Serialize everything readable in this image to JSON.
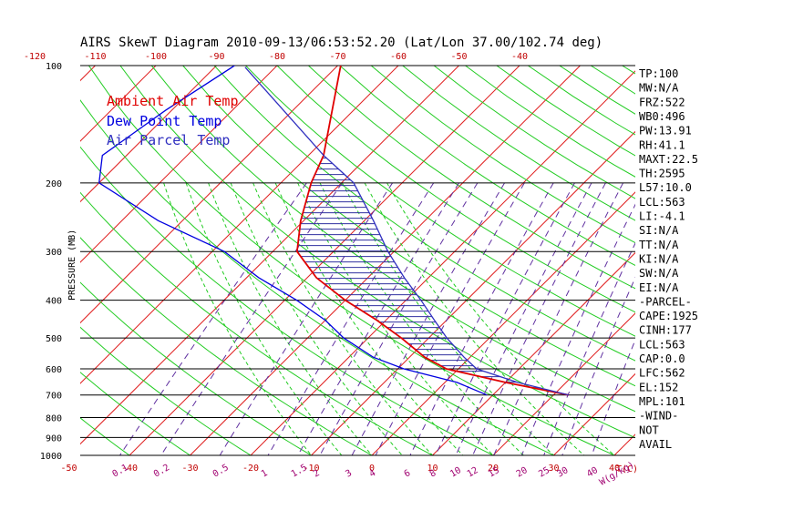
{
  "title": "AIRS SkewT Diagram 2010-09-13/06:53:52.20 (Lat/Lon 37.00/102.74 deg)",
  "legend": [
    {
      "label": "Ambient Air Temp",
      "color": "#e00000"
    },
    {
      "label": "Dew Point Temp",
      "color": "#0000e0"
    },
    {
      "label": "Air Parcel Temp",
      "color": "#3030c0"
    }
  ],
  "chart_data": {
    "type": "line",
    "title": "AIRS SkewT Diagram 2010-09-13/06:53:52.20 (Lat/Lon 37.00/102.74 deg)",
    "ylabel": "PRESSURE (MB)",
    "xlabel": "T(C)",
    "mixing_ratio_unit": "W(g/kg)",
    "y_ticks": [
      "100",
      "200",
      "300",
      "400",
      "500",
      "600",
      "700",
      "800",
      "900",
      "1000"
    ],
    "y_tick_values": [
      100,
      200,
      300,
      400,
      500,
      600,
      700,
      800,
      900,
      1000
    ],
    "x_ticks_bottom": [
      "-50",
      "-40",
      "-30",
      "-20",
      "-10",
      "0",
      "10",
      "20",
      "30",
      "40"
    ],
    "x_ticks_bottom_values": [
      -50,
      -40,
      -30,
      -20,
      -10,
      0,
      10,
      20,
      30,
      40
    ],
    "x_ticks_top": [
      "-120",
      "-110",
      "-100",
      "-90",
      "-80",
      "-70",
      "-60",
      "-50",
      "-40"
    ],
    "x_ticks_top_values": [
      -120,
      -110,
      -100,
      -90,
      -80,
      -70,
      -60,
      -50,
      -40
    ],
    "mixing_ratio_labels": [
      "0.1",
      "0.2",
      "0.5",
      "1",
      "1.5",
      "2",
      "3",
      "4",
      "6",
      "8",
      "10",
      "12",
      "15",
      "20",
      "25",
      "30",
      "40"
    ],
    "mixing_ratio_values": [
      0.1,
      0.2,
      0.5,
      1,
      1.5,
      2,
      3,
      4,
      6,
      8,
      10,
      12,
      15,
      20,
      25,
      30,
      40
    ],
    "series": [
      {
        "name": "Ambient Air Temp",
        "color": "#e00000",
        "points": [
          [
            100,
            -69.5
          ],
          [
            170,
            -57.5
          ],
          [
            200,
            -55
          ],
          [
            250,
            -50.5
          ],
          [
            300,
            -46
          ],
          [
            350,
            -38.5
          ],
          [
            400,
            -30
          ],
          [
            450,
            -21.5
          ],
          [
            500,
            -14.5
          ],
          [
            560,
            -7.5
          ],
          [
            600,
            -2
          ],
          [
            650,
            10
          ],
          [
            700,
            22.5
          ]
        ]
      },
      {
        "name": "Dew Point Temp",
        "color": "#0000e0",
        "points": [
          [
            100,
            -87
          ],
          [
            130,
            -91
          ],
          [
            170,
            -94
          ],
          [
            200,
            -90
          ],
          [
            250,
            -74
          ],
          [
            300,
            -58
          ],
          [
            350,
            -48
          ],
          [
            400,
            -38
          ],
          [
            450,
            -30
          ],
          [
            500,
            -24
          ],
          [
            560,
            -16
          ],
          [
            600,
            -9
          ],
          [
            650,
            2
          ],
          [
            700,
            9
          ]
        ]
      },
      {
        "name": "Air Parcel Temp",
        "color": "#3030c0",
        "points": [
          [
            101,
            -85
          ],
          [
            170,
            -57.5
          ],
          [
            200,
            -48
          ],
          [
            250,
            -38.5
          ],
          [
            300,
            -31
          ],
          [
            350,
            -24
          ],
          [
            400,
            -17.5
          ],
          [
            450,
            -12
          ],
          [
            500,
            -7
          ],
          [
            560,
            -1
          ],
          [
            600,
            3
          ],
          [
            650,
            12
          ],
          [
            700,
            22.5
          ]
        ]
      }
    ],
    "sounding_indices": [
      "TP:100",
      "MW:N/A",
      "FRZ:522",
      "WB0:496",
      "PW:13.91",
      "RH:41.1",
      "MAXT:22.5",
      "TH:2595",
      "L57:10.0",
      "LCL:563",
      "LI:-4.1",
      "SI:N/A",
      "TT:N/A",
      "KI:N/A",
      "SW:N/A",
      "EI:N/A",
      "-PARCEL-",
      "CAPE:1925",
      "CINH:177",
      "LCL:563",
      "CAP:0.0",
      "LFC:562",
      "EL:152",
      "MPL:101",
      "-WIND-",
      "NOT",
      "AVAIL"
    ]
  }
}
